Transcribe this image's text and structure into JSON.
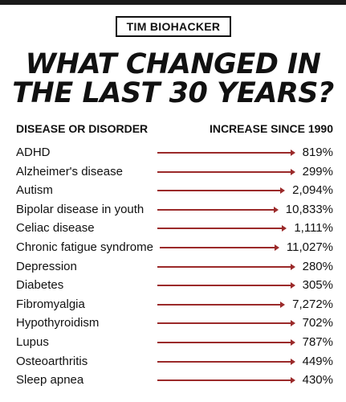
{
  "brand": "TIM BIOHACKER",
  "headline": {
    "line1": "WHAT CHANGED IN",
    "line2": "THE LAST 30 YEARS?"
  },
  "columns": {
    "left": "DISEASE OR DISORDER",
    "right": "INCREASE SINCE 1990"
  },
  "colors": {
    "arrow": "#9b2a2a",
    "text": "#111111",
    "top_bar": "#1a1a1a"
  },
  "rows": [
    {
      "name": "ADHD",
      "value": "819%"
    },
    {
      "name": "Alzheimer's disease",
      "value": "299%"
    },
    {
      "name": "Autism",
      "value": "2,094%"
    },
    {
      "name": "Bipolar disease in youth",
      "value": "10,833%"
    },
    {
      "name": "Celiac disease",
      "value": "1,111%"
    },
    {
      "name": "Chronic fatigue syndrome",
      "value": "11,027%"
    },
    {
      "name": "Depression",
      "value": "280%"
    },
    {
      "name": "Diabetes",
      "value": "305%"
    },
    {
      "name": "Fibromyalgia",
      "value": "7,272%"
    },
    {
      "name": "Hypothyroidism",
      "value": "702%"
    },
    {
      "name": "Lupus",
      "value": "787%"
    },
    {
      "name": "Osteoarthritis",
      "value": "449%"
    },
    {
      "name": "Sleep apnea",
      "value": "430%"
    }
  ]
}
